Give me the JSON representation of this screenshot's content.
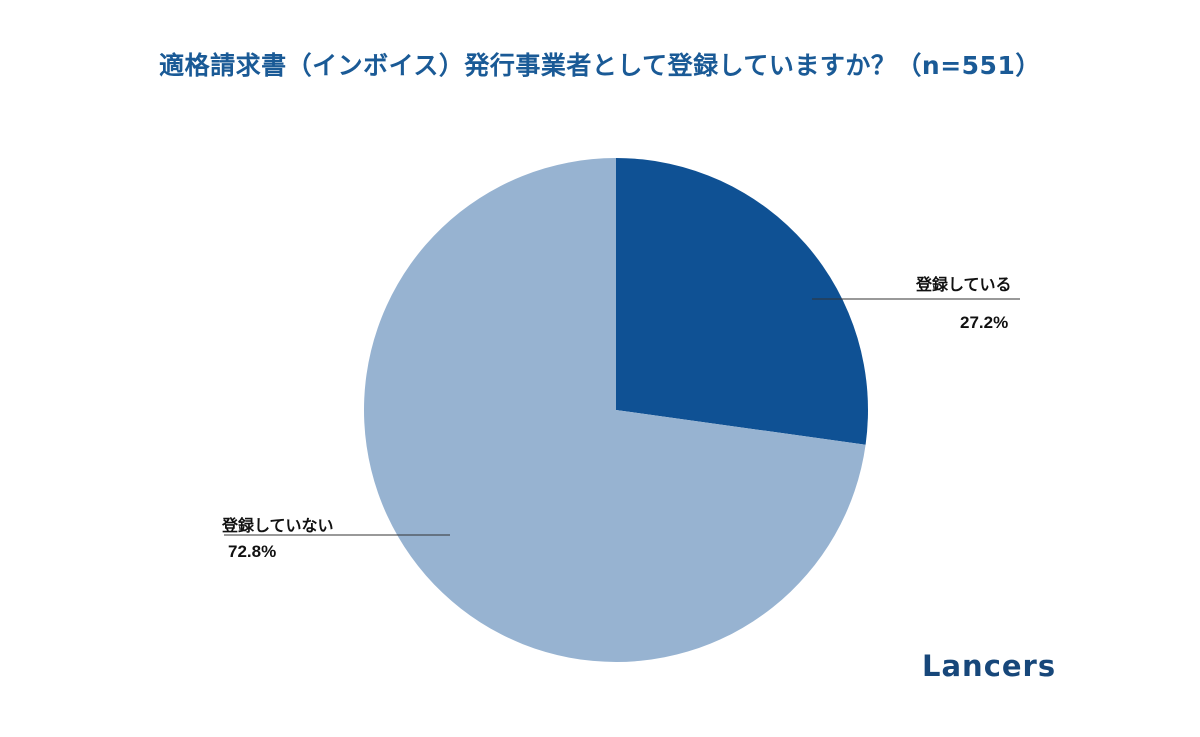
{
  "chart_data": {
    "type": "pie",
    "title": "適格請求書（インボイス）発行事業者として登録していますか？（n=551）",
    "slices": [
      {
        "label": "登録している",
        "value": 27.2,
        "value_label": "27.2%",
        "color": "#0f5194"
      },
      {
        "label": "登録していない",
        "value": 72.8,
        "value_label": "72.8%",
        "color": "#97b3d1"
      }
    ],
    "start": "12 o'clock",
    "direction": "clockwise"
  },
  "logo": "Lancers"
}
